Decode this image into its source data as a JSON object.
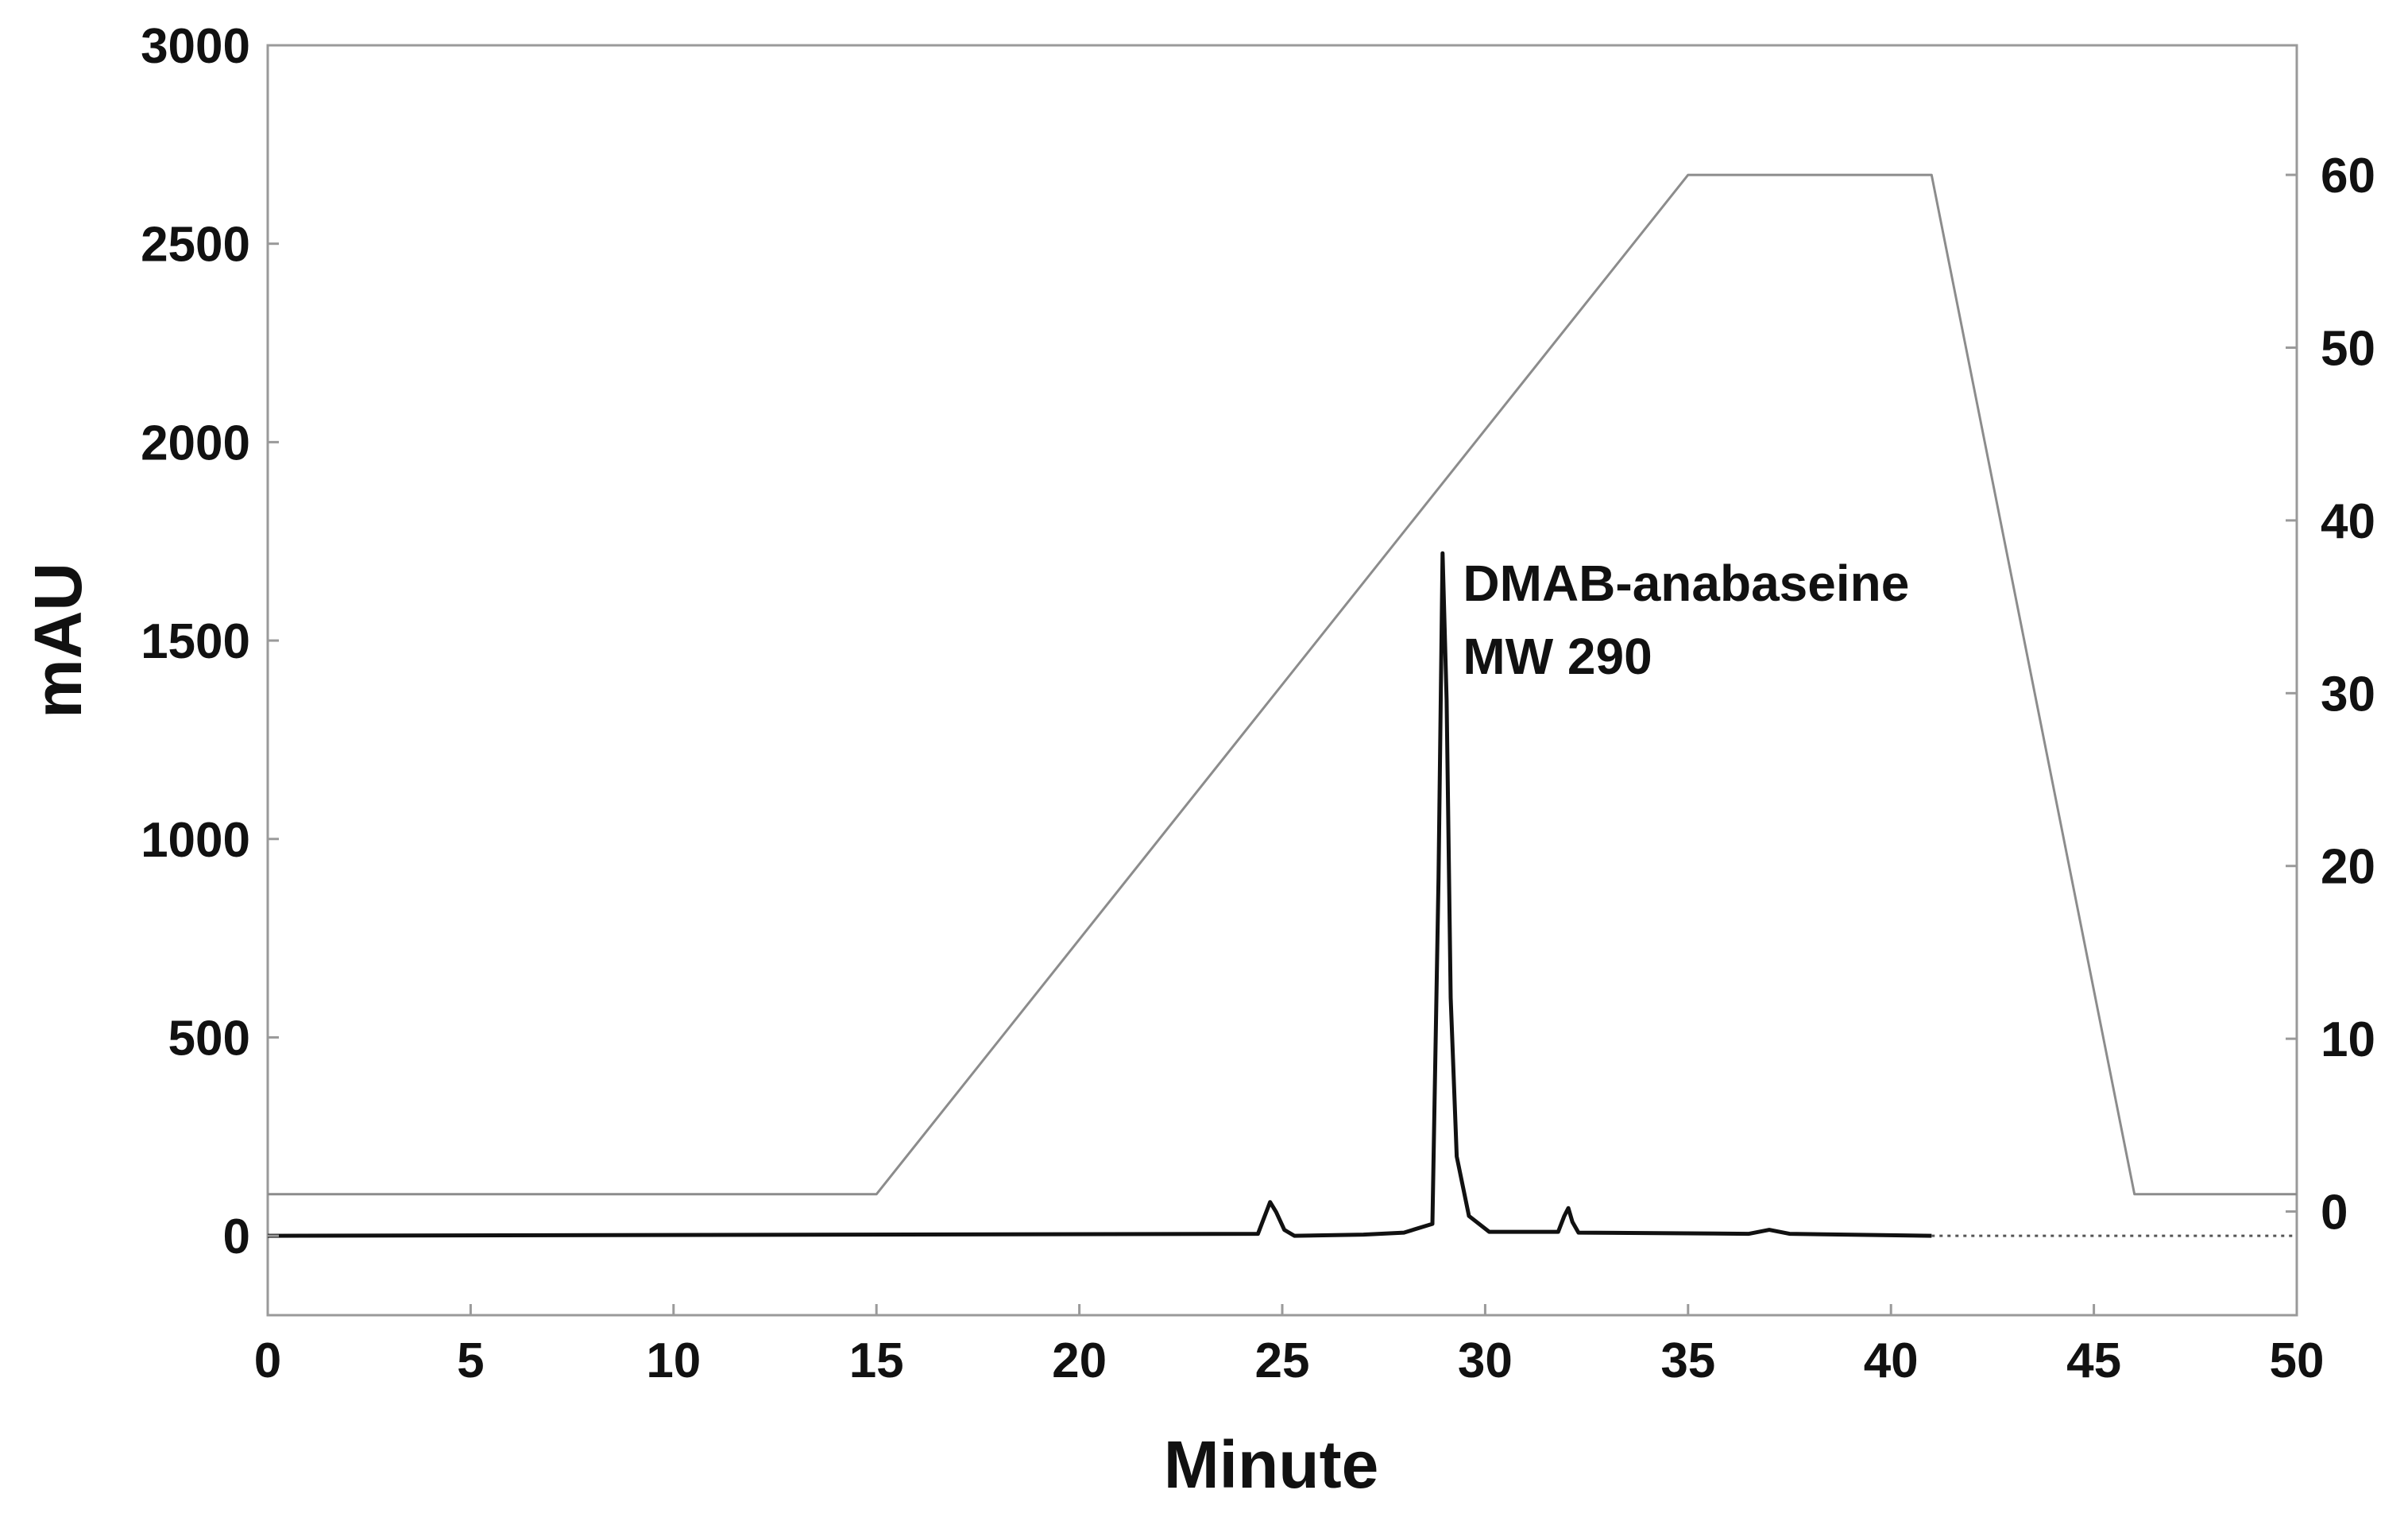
{
  "chart_data": {
    "type": "line",
    "xlabel": "Minute",
    "ylabel": "mAU",
    "xlim": [
      0,
      50
    ],
    "ylim": [
      -200,
      3000
    ],
    "y2lim": [
      -6,
      67.5
    ],
    "x_ticks": [
      0,
      5,
      10,
      15,
      20,
      25,
      30,
      35,
      40,
      45,
      50
    ],
    "y_ticks": [
      0,
      500,
      1000,
      1500,
      2000,
      2500,
      3000
    ],
    "y2_ticks": [
      0,
      10,
      20,
      30,
      40,
      50,
      60
    ],
    "grid": false,
    "series": [
      {
        "axis": "left",
        "color": "#111111",
        "x": [
          0,
          24.4,
          24.55,
          24.7,
          24.85,
          25.05,
          25.3,
          27,
          28.0,
          28.7,
          28.85,
          28.95,
          29.05,
          29.15,
          29.3,
          29.6,
          30.1,
          31.8,
          31.95,
          32.05,
          32.15,
          32.3,
          36.5,
          37.0,
          37.5,
          41
        ],
        "y": [
          0,
          5,
          45,
          85,
          60,
          15,
          0,
          3,
          8,
          30,
          900,
          1720,
          1350,
          600,
          200,
          50,
          10,
          10,
          50,
          70,
          35,
          8,
          5,
          15,
          5,
          0
        ]
      },
      {
        "axis": "right",
        "color": "#8c8c8c",
        "x": [
          0,
          15,
          35,
          41,
          46,
          50
        ],
        "y": [
          1,
          1,
          60,
          60,
          1,
          1
        ]
      }
    ],
    "annotations": [
      {
        "lines": [
          "DMAB-anabaseine",
          "MW 290"
        ],
        "x": 29.1,
        "y": 1600
      }
    ]
  }
}
